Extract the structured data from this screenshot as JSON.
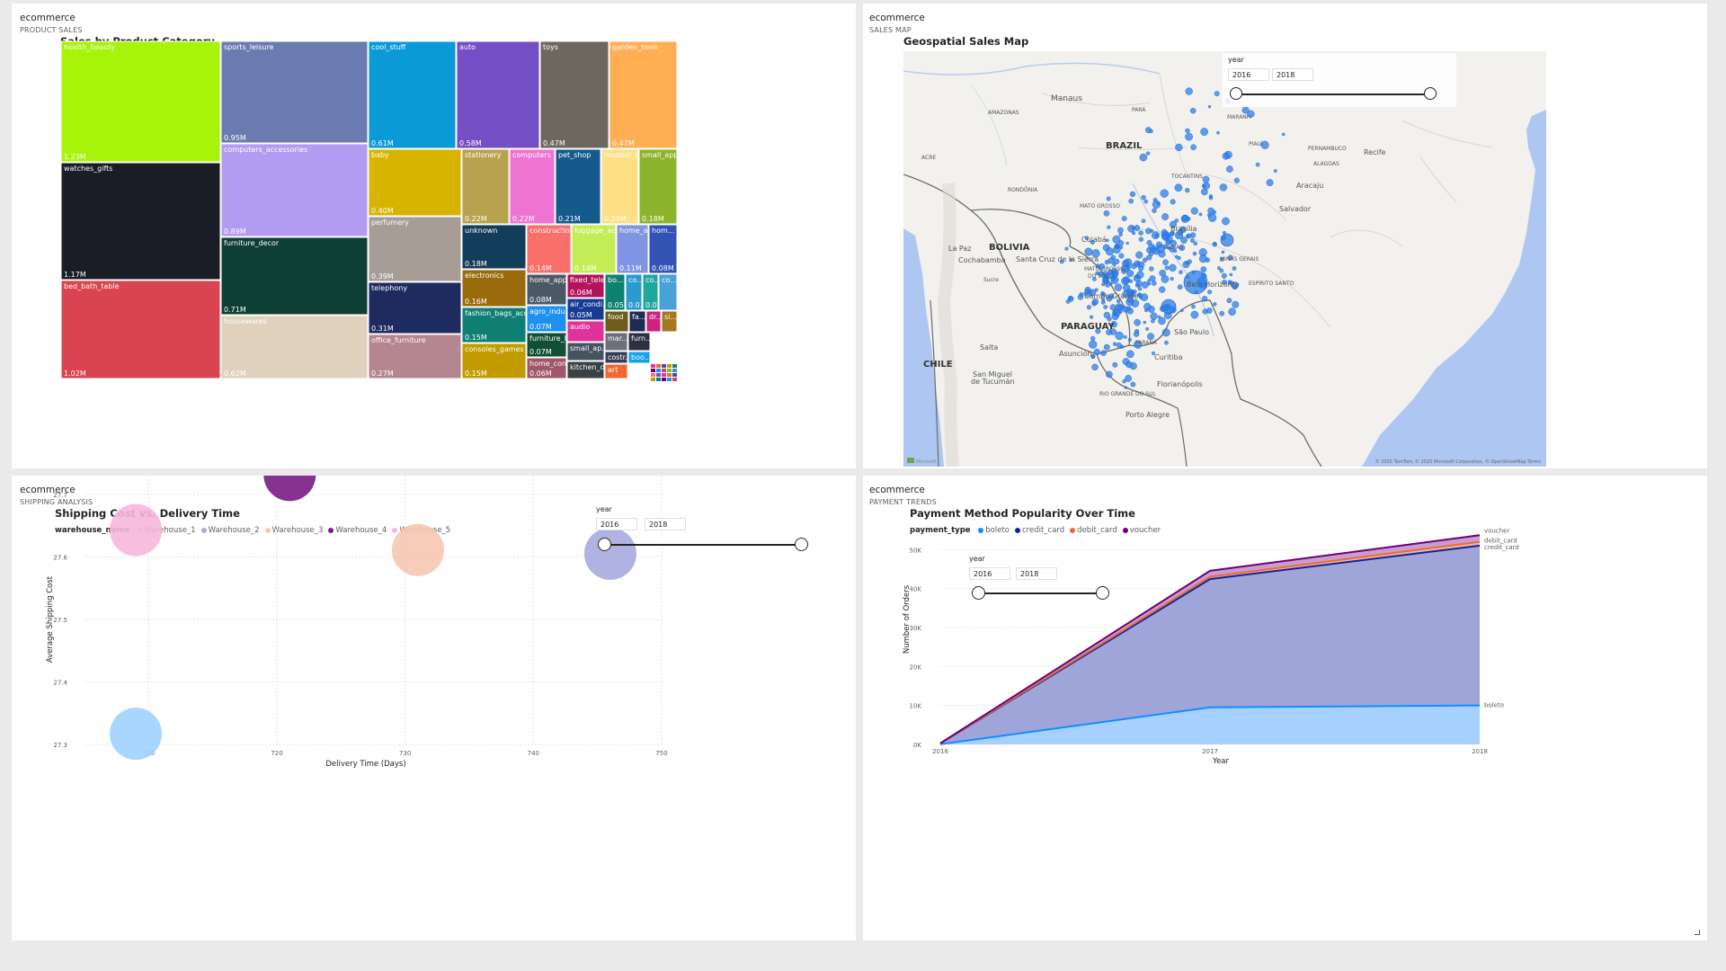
{
  "tiles": {
    "product_sales": {
      "dataset": "ecommerce",
      "page": "PRODUCT SALES",
      "title": "Sales by Product Category"
    },
    "sales_map": {
      "dataset": "ecommerce",
      "page": "SALES MAP",
      "title": "Geospatial Sales Map"
    },
    "shipping": {
      "dataset": "ecommerce",
      "page": "SHIPPING ANALYSIS",
      "title": "Shipping Cost vs. Delivery Time"
    },
    "payment": {
      "dataset": "ecommerce",
      "page": "PAYMENT TRENDS",
      "title": "Payment Method Popularity Over Time"
    }
  },
  "treemap": {
    "categories": [
      {
        "name": "health_beauty",
        "value": "1.23M",
        "color": "#a7f40a"
      },
      {
        "name": "watches_gifts",
        "value": "1.17M",
        "color": "#1b1d26"
      },
      {
        "name": "bed_bath_table",
        "value": "1.02M",
        "color": "#d94451"
      },
      {
        "name": "sports_leisure",
        "value": "0.95M",
        "color": "#6b7bb0"
      },
      {
        "name": "computers_accessories",
        "value": "0.89M",
        "color": "#b29cf2"
      },
      {
        "name": "furniture_decor",
        "value": "0.71M",
        "color": "#0e3f35"
      },
      {
        "name": "housewares",
        "value": "0.62M",
        "color": "#e0d1bc"
      },
      {
        "name": "cool_stuff",
        "value": "0.61M",
        "color": "#0b9ad8"
      },
      {
        "name": "auto",
        "value": "0.58M",
        "color": "#744ec4"
      },
      {
        "name": "toys",
        "value": "0.47M",
        "color": "#6e6760"
      },
      {
        "name": "garden_tools",
        "value": "0.47M",
        "color": "#ffae54"
      },
      {
        "name": "baby",
        "value": "0.40M",
        "color": "#d7b400"
      },
      {
        "name": "perfumery",
        "value": "0.39M",
        "color": "#a89c96"
      },
      {
        "name": "telephony",
        "value": "0.31M",
        "color": "#1f2a5e"
      },
      {
        "name": "office_furniture",
        "value": "0.27M",
        "color": "#b58590"
      },
      {
        "name": "stationery",
        "value": "0.22M",
        "color": "#b8a24e"
      },
      {
        "name": "computers",
        "value": "0.22M",
        "color": "#ef73d3"
      },
      {
        "name": "pet_shop",
        "value": "0.21M",
        "color": "#155a8c"
      },
      {
        "name": "musical_i...",
        "value": "0.19M",
        "color": "#fde085"
      },
      {
        "name": "small_app...",
        "value": "0.18M",
        "color": "#8db32b"
      },
      {
        "name": "unknown",
        "value": "0.18M",
        "color": "#123e5b"
      },
      {
        "name": "construction...",
        "value": "0.14M",
        "color": "#fb6f6b"
      },
      {
        "name": "luggage_ac...",
        "value": "0.14M",
        "color": "#c3ec55"
      },
      {
        "name": "home_a...",
        "value": "0.11M",
        "color": "#7f94e3"
      },
      {
        "name": "hom...",
        "value": "0.08M",
        "color": "#3252b5"
      },
      {
        "name": "electronics",
        "value": "0.16M",
        "color": "#9a6b0c"
      },
      {
        "name": "fashion_bags_acce...",
        "value": "0.15M",
        "color": "#0f7e73"
      },
      {
        "name": "consoles_games",
        "value": "0.15M",
        "color": "#c09c00"
      },
      {
        "name": "home_app...",
        "value": "0.08M",
        "color": "#4b5866"
      },
      {
        "name": "fixed_tele...",
        "value": "0.06M",
        "color": "#b4125c"
      },
      {
        "name": "agro_indu...",
        "value": "0.07M",
        "color": "#1f8ff2"
      },
      {
        "name": "air_condi...",
        "value": "0.05M",
        "color": "#173a94"
      },
      {
        "name": "furniture_li...",
        "value": "0.07M",
        "color": "#114f37"
      },
      {
        "name": "audio",
        "value": "",
        "color": "#e0329b"
      },
      {
        "name": "home_con...",
        "value": "0.06M",
        "color": "#a0566b"
      },
      {
        "name": "small_ap...",
        "value": "",
        "color": "#45525f"
      },
      {
        "name": "kitchen_d...",
        "value": "",
        "color": "#3b3f46"
      },
      {
        "name": "bo...",
        "value": "0.05...",
        "color": "#0f8170"
      },
      {
        "name": "co...",
        "value": "0.0...",
        "color": "#2a9bd1"
      },
      {
        "name": "co...",
        "value": "0.0...",
        "color": "#1ea89d"
      },
      {
        "name": "co...",
        "value": "",
        "color": "#4aa0d8"
      },
      {
        "name": "food",
        "value": "",
        "color": "#6e5c1b"
      },
      {
        "name": "fa...",
        "value": "",
        "color": "#1d2a52"
      },
      {
        "name": "dr...",
        "value": "",
        "color": "#d1207c"
      },
      {
        "name": "si...",
        "value": "",
        "color": "#a5781e"
      },
      {
        "name": "mar...",
        "value": "",
        "color": "#6e6f7a"
      },
      {
        "name": "furn...",
        "value": "",
        "color": "#2d2f44"
      },
      {
        "name": "costr...",
        "value": "",
        "color": "#3a3d58"
      },
      {
        "name": "boo...",
        "value": "",
        "color": "#14a1ef"
      },
      {
        "name": "art",
        "value": "",
        "color": "#f0682f"
      }
    ]
  },
  "map": {
    "labels": {
      "brazil": "BRAZIL",
      "bolivia": "BOLIVIA",
      "paraguay": "PARAGUAY",
      "chile": "CHILE",
      "manaus": "Manaus",
      "amazonas": "AMAZONAS",
      "para": "PARÁ",
      "maranhao": "MARANH",
      "piaui": "PIAUÍ",
      "pernambuco": "PERNAMBUCO",
      "recife": "Recife",
      "alagoas": "ALAGOAS",
      "aracaju": "Aracaju",
      "salvador": "Salvador",
      "acre": "ACRE",
      "rondonia": "RONDÔNIA",
      "tocantins": "TOCANTINS",
      "mato_grosso": "MATO GROSSO",
      "brasilia": "Brasília",
      "goias": "GOIÁS",
      "cuiaba": "Cuiabá",
      "la_paz": "La Paz",
      "cochabamba": "Cochabamba",
      "santa_cruz": "Santa Cruz de la Sierra",
      "sucre": "Sucre",
      "minas_gerais": "MINAS GERAIS",
      "mato_grosso_sul_1": "MATO GROSSO",
      "mato_grosso_sul_2": "DO SUL",
      "campo_grande": "Campo Grande",
      "belo_horizonte": "Belo Horizonte",
      "espirito_santo": "ESPÍRITO SANTO",
      "sao_paulo": "São Paulo",
      "salta": "Salta",
      "asuncion": "Asunción",
      "parana": "PARANÁ",
      "curitiba": "Curitiba",
      "san_miguel_1": "San Miguel",
      "san_miguel_2": "de Tucumán",
      "florianopolis": "Florianópolis",
      "rio_grande_sul": "RIO GRANDE DO SUL",
      "porto_alegre": "Porto Alegre",
      "attribution": "© 2025 TomTom, © 2025 Microsoft Corporation, © OpenStreetMap  Terms",
      "ms_logo": "Microsoft"
    },
    "slicer": {
      "caption": "year",
      "from": "2016",
      "to": "2018"
    }
  },
  "shipping": {
    "legend_title": "warehouse_name",
    "slicer": {
      "caption": "year",
      "from": "2016",
      "to": "2018"
    }
  },
  "payment": {
    "legend_title": "payment_type",
    "slicer": {
      "caption": "year",
      "from": "2016",
      "to": "2018"
    }
  },
  "chart_data": [
    {
      "type": "treemap",
      "title": "Sales by Product Category",
      "categories": [
        "health_beauty",
        "watches_gifts",
        "bed_bath_table",
        "sports_leisure",
        "computers_accessories",
        "furniture_decor",
        "housewares",
        "cool_stuff",
        "auto",
        "toys",
        "garden_tools",
        "baby",
        "perfumery",
        "telephony",
        "office_furniture",
        "stationery",
        "computers",
        "pet_shop",
        "musical_i...",
        "small_app...",
        "unknown",
        "construction...",
        "luggage_ac...",
        "home_a...",
        "hom...",
        "electronics",
        "fashion_bags_acce...",
        "consoles_games",
        "home_app...",
        "fixed_tele...",
        "agro_indu...",
        "air_condi...",
        "furniture_li...",
        "home_con..."
      ],
      "values": [
        1.23,
        1.17,
        1.02,
        0.95,
        0.89,
        0.71,
        0.62,
        0.61,
        0.58,
        0.47,
        0.47,
        0.4,
        0.39,
        0.31,
        0.27,
        0.22,
        0.22,
        0.21,
        0.19,
        0.18,
        0.18,
        0.14,
        0.14,
        0.11,
        0.08,
        0.16,
        0.15,
        0.15,
        0.08,
        0.06,
        0.07,
        0.05,
        0.07,
        0.06
      ],
      "unit": "M"
    },
    {
      "type": "scatter",
      "title": "Shipping Cost vs. Delivery Time",
      "xlabel": "Delivery Time (Days)",
      "ylabel": "Average Shipping Cost",
      "xlim": [
        705,
        750
      ],
      "ylim": [
        27.3,
        27.73
      ],
      "xticks": [
        "710",
        "720",
        "730",
        "740",
        "750"
      ],
      "yticks": [
        "27.3",
        "27.4",
        "27.5",
        "27.6",
        "27.7"
      ],
      "series": [
        {
          "name": "Warehouse_1",
          "x": 709,
          "y": 27.317,
          "color": "#a0d1ff"
        },
        {
          "name": "Warehouse_2",
          "x": 746,
          "y": 27.605,
          "color": "#a7abde"
        },
        {
          "name": "Warehouse_3",
          "x": 731,
          "y": 27.611,
          "color": "#f6c6b0"
        },
        {
          "name": "Warehouse_4",
          "x": 721,
          "y": 27.731,
          "color": "#7a1b87"
        },
        {
          "name": "Warehouse_5",
          "x": 709,
          "y": 27.643,
          "color": "#f7b6dc"
        }
      ]
    },
    {
      "type": "area",
      "title": "Payment Method Popularity Over Time",
      "xlabel": "Year",
      "ylabel": "Number of Orders",
      "categories": [
        "2016",
        "2017",
        "2018"
      ],
      "ylim": [
        0,
        54000
      ],
      "yticks": [
        "0K",
        "10K",
        "20K",
        "30K",
        "40K",
        "50K"
      ],
      "series": [
        {
          "name": "boleto",
          "values": [
            63,
            9508,
            10002
          ],
          "color": "#118dff",
          "fill": "#a6d1ff"
        },
        {
          "name": "credit_card",
          "values": [
            258,
            42428,
            51036
          ],
          "color": "#12239e",
          "fill": "#9fa5d8"
        },
        {
          "name": "debit_card",
          "values": [
            260,
            43040,
            52011
          ],
          "color": "#e66c37",
          "fill": "#f4b79a"
        },
        {
          "name": "voucher",
          "values": [
            282,
            44565,
            53700
          ],
          "color": "#6b007b",
          "fill": "#c99dcf"
        }
      ],
      "end_labels": [
        "voucher",
        "debit_card",
        "credit_card",
        "boleto"
      ]
    }
  ]
}
